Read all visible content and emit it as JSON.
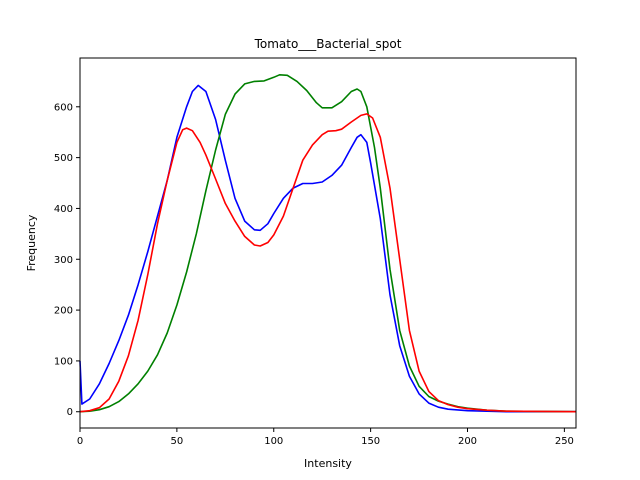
{
  "chart_data": {
    "type": "line",
    "title": "Tomato___Bacterial_spot",
    "xlabel": "Intensity",
    "ylabel": "Frequency",
    "xlim": [
      0,
      256
    ],
    "ylim": [
      -32,
      696
    ],
    "xticks": [
      0,
      50,
      100,
      150,
      200,
      250
    ],
    "yticks": [
      0,
      100,
      200,
      300,
      400,
      500,
      600
    ],
    "grid": false,
    "legend": "none",
    "series": [
      {
        "color": "#0000ff",
        "points": [
          [
            0,
            100
          ],
          [
            1,
            15
          ],
          [
            5,
            25
          ],
          [
            10,
            55
          ],
          [
            15,
            95
          ],
          [
            20,
            140
          ],
          [
            25,
            190
          ],
          [
            30,
            250
          ],
          [
            35,
            315
          ],
          [
            40,
            385
          ],
          [
            45,
            455
          ],
          [
            50,
            540
          ],
          [
            55,
            600
          ],
          [
            58,
            630
          ],
          [
            61,
            642
          ],
          [
            65,
            630
          ],
          [
            70,
            575
          ],
          [
            75,
            495
          ],
          [
            80,
            420
          ],
          [
            85,
            375
          ],
          [
            90,
            358
          ],
          [
            93,
            357
          ],
          [
            97,
            370
          ],
          [
            100,
            390
          ],
          [
            105,
            420
          ],
          [
            110,
            440
          ],
          [
            115,
            449
          ],
          [
            120,
            449
          ],
          [
            125,
            452
          ],
          [
            130,
            465
          ],
          [
            135,
            485
          ],
          [
            140,
            520
          ],
          [
            143,
            540
          ],
          [
            145,
            545
          ],
          [
            148,
            530
          ],
          [
            150,
            490
          ],
          [
            155,
            380
          ],
          [
            160,
            230
          ],
          [
            165,
            130
          ],
          [
            170,
            70
          ],
          [
            175,
            35
          ],
          [
            180,
            17
          ],
          [
            185,
            9
          ],
          [
            190,
            5
          ],
          [
            200,
            2
          ],
          [
            210,
            1
          ],
          [
            220,
            0
          ],
          [
            256,
            0
          ]
        ]
      },
      {
        "color": "#008000",
        "points": [
          [
            0,
            0
          ],
          [
            5,
            1
          ],
          [
            10,
            4
          ],
          [
            15,
            10
          ],
          [
            20,
            20
          ],
          [
            25,
            35
          ],
          [
            30,
            55
          ],
          [
            35,
            80
          ],
          [
            40,
            112
          ],
          [
            45,
            155
          ],
          [
            50,
            210
          ],
          [
            55,
            275
          ],
          [
            60,
            350
          ],
          [
            65,
            435
          ],
          [
            70,
            515
          ],
          [
            75,
            585
          ],
          [
            80,
            625
          ],
          [
            85,
            645
          ],
          [
            90,
            650
          ],
          [
            95,
            651
          ],
          [
            100,
            658
          ],
          [
            103,
            663
          ],
          [
            107,
            662
          ],
          [
            112,
            650
          ],
          [
            117,
            632
          ],
          [
            122,
            608
          ],
          [
            125,
            598
          ],
          [
            130,
            598
          ],
          [
            135,
            610
          ],
          [
            140,
            630
          ],
          [
            143,
            635
          ],
          [
            145,
            630
          ],
          [
            148,
            600
          ],
          [
            152,
            520
          ],
          [
            155,
            440
          ],
          [
            160,
            280
          ],
          [
            165,
            160
          ],
          [
            170,
            90
          ],
          [
            175,
            50
          ],
          [
            180,
            30
          ],
          [
            185,
            21
          ],
          [
            190,
            15
          ],
          [
            195,
            10
          ],
          [
            200,
            7
          ],
          [
            210,
            3
          ],
          [
            220,
            1
          ],
          [
            256,
            0
          ]
        ]
      },
      {
        "color": "#ff0000",
        "points": [
          [
            0,
            0
          ],
          [
            5,
            2
          ],
          [
            10,
            8
          ],
          [
            15,
            25
          ],
          [
            20,
            60
          ],
          [
            25,
            110
          ],
          [
            30,
            180
          ],
          [
            35,
            270
          ],
          [
            40,
            370
          ],
          [
            45,
            455
          ],
          [
            50,
            530
          ],
          [
            53,
            555
          ],
          [
            55,
            558
          ],
          [
            58,
            553
          ],
          [
            62,
            530
          ],
          [
            65,
            505
          ],
          [
            70,
            458
          ],
          [
            75,
            410
          ],
          [
            80,
            375
          ],
          [
            85,
            345
          ],
          [
            90,
            328
          ],
          [
            93,
            326
          ],
          [
            97,
            333
          ],
          [
            100,
            348
          ],
          [
            105,
            385
          ],
          [
            110,
            440
          ],
          [
            115,
            495
          ],
          [
            120,
            525
          ],
          [
            125,
            545
          ],
          [
            128,
            552
          ],
          [
            132,
            553
          ],
          [
            135,
            556
          ],
          [
            140,
            570
          ],
          [
            145,
            583
          ],
          [
            148,
            586
          ],
          [
            151,
            578
          ],
          [
            155,
            540
          ],
          [
            160,
            440
          ],
          [
            165,
            300
          ],
          [
            170,
            160
          ],
          [
            175,
            80
          ],
          [
            180,
            40
          ],
          [
            185,
            22
          ],
          [
            190,
            14
          ],
          [
            195,
            9
          ],
          [
            200,
            6
          ],
          [
            210,
            3
          ],
          [
            220,
            1
          ],
          [
            256,
            0
          ]
        ]
      }
    ]
  }
}
